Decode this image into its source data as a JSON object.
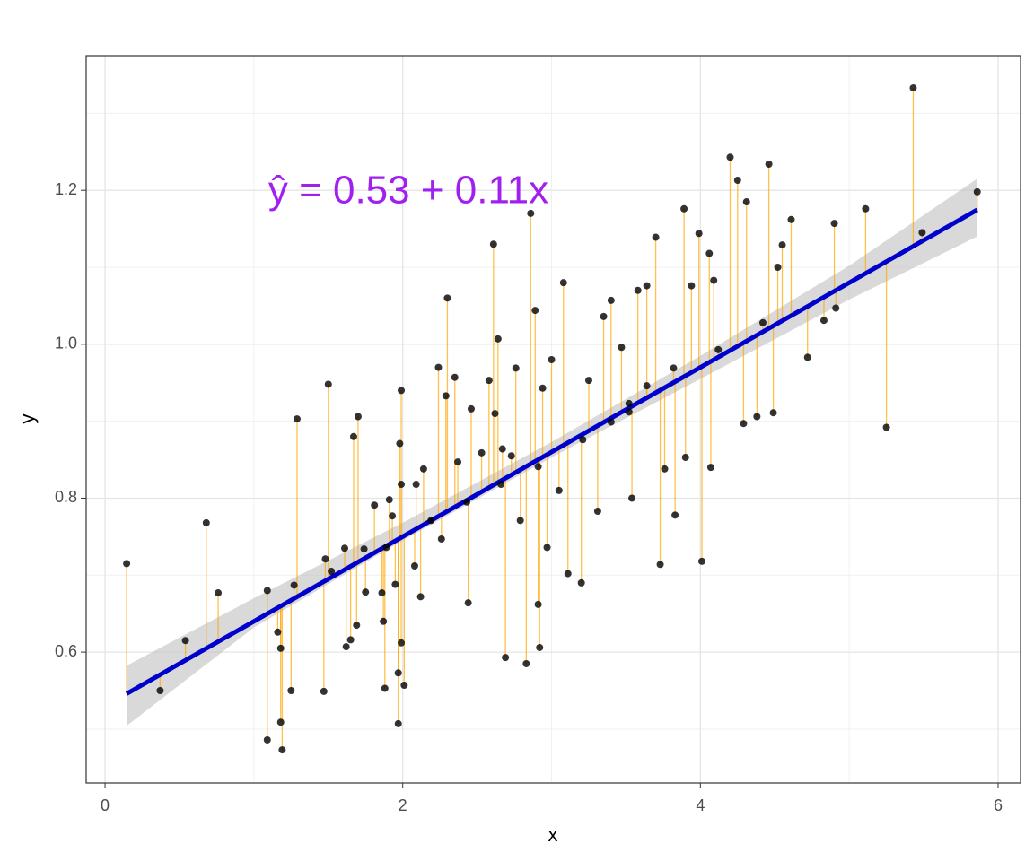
{
  "chart_data": {
    "type": "scatter",
    "annotation": "ŷ = 0.53 + 0.11x",
    "annotation_color": "#a020f0",
    "xlabel": "x",
    "ylabel": "y",
    "xlim": [
      -0.127,
      6.151
    ],
    "ylim": [
      0.43,
      1.375
    ],
    "xticks": [
      0,
      2,
      4,
      6
    ],
    "yticks": [
      0.6,
      0.8,
      {
        "value": 1,
        "label": "1.0"
      },
      1.2
    ],
    "minor_xticks": [
      1,
      3,
      5
    ],
    "minor_yticks": [
      0.5,
      0.7,
      0.9,
      1.1,
      1.3
    ],
    "grid": true,
    "color": "#000000",
    "residual_color": "#ffa500",
    "fit": {
      "intercept": 0.53,
      "slope": 0.11,
      "color": "#0000cd"
    },
    "band": {
      "color": "#bfbfbf",
      "x": [
        0.15,
        1,
        2,
        3,
        4,
        5,
        5.86
      ],
      "lower": [
        0.505,
        0.632,
        0.745,
        0.853,
        0.955,
        1.058,
        1.14
      ],
      "upper": [
        0.583,
        0.67,
        0.768,
        0.873,
        0.985,
        1.102,
        1.215
      ]
    },
    "x": [
      0.145,
      0.37,
      0.54,
      0.68,
      0.76,
      1.09,
      1.09,
      1.16,
      1.18,
      1.19,
      1.18,
      1.25,
      1.27,
      1.29,
      1.47,
      1.5,
      1.48,
      1.52,
      1.61,
      1.62,
      1.65,
      1.67,
      1.7,
      1.69,
      1.74,
      1.75,
      1.81,
      1.86,
      1.88,
      1.87,
      1.91,
      1.93,
      1.95,
      1.97,
      1.97,
      1.99,
      1.98,
      1.99,
      2.01,
      1.99,
      2.08,
      2.09,
      2.12,
      2.14,
      2.24,
      2.26,
      2.3,
      2.29,
      2.35,
      2.37,
      2.44,
      2.46,
      2.53,
      2.58,
      2.61,
      2.62,
      2.64,
      2.66,
      2.69,
      2.73,
      2.76,
      2.79,
      2.83,
      2.86,
      2.89,
      2.91,
      2.92,
      2.94,
      2.97,
      3.0,
      3.05,
      3.08,
      3.11,
      3.2,
      3.25,
      3.31,
      3.35,
      3.4,
      3.47,
      3.52,
      3.54,
      3.58,
      3.64,
      3.7,
      3.73,
      3.76,
      3.83,
      3.89,
      3.9,
      3.94,
      3.99,
      4.01,
      4.06,
      4.07,
      4.09,
      4.2,
      4.25,
      4.29,
      4.31,
      4.38,
      4.46,
      4.49,
      4.52,
      4.55,
      4.61,
      4.72,
      4.83,
      4.9,
      4.91,
      5.11,
      5.25,
      5.43,
      5.49,
      5.86,
      1.89,
      2.43,
      2.91,
      3.21,
      3.52,
      3.82,
      4.12,
      4.42,
      2.19,
      2.67,
      3.4,
      3.64
    ],
    "values": [
      0.715,
      0.55,
      0.615,
      0.768,
      0.677,
      0.68,
      0.486,
      0.626,
      0.509,
      0.473,
      0.605,
      0.55,
      0.687,
      0.903,
      0.549,
      0.948,
      0.721,
      0.705,
      0.735,
      0.607,
      0.616,
      0.88,
      0.906,
      0.635,
      0.734,
      0.678,
      0.791,
      0.677,
      0.553,
      0.64,
      0.798,
      0.777,
      0.688,
      0.573,
      0.507,
      0.94,
      0.871,
      0.612,
      0.557,
      0.818,
      0.712,
      0.818,
      0.672,
      0.838,
      0.97,
      0.747,
      1.06,
      0.933,
      0.957,
      0.847,
      0.664,
      0.916,
      0.859,
      0.953,
      1.13,
      0.91,
      1.007,
      0.818,
      0.593,
      0.855,
      0.969,
      0.771,
      0.585,
      1.17,
      1.044,
      0.662,
      0.606,
      0.943,
      0.736,
      0.98,
      0.81,
      1.08,
      0.702,
      0.69,
      0.953,
      0.783,
      1.036,
      1.057,
      0.996,
      0.912,
      0.8,
      1.07,
      1.076,
      1.139,
      0.714,
      0.838,
      0.778,
      1.176,
      0.853,
      1.076,
      1.144,
      0.718,
      1.118,
      0.84,
      1.083,
      1.243,
      1.213,
      0.897,
      1.185,
      0.906,
      1.234,
      0.911,
      1.1,
      1.129,
      1.162,
      0.983,
      1.031,
      1.157,
      1.047,
      1.176,
      0.892,
      1.333,
      1.145,
      1.198,
      0.736,
      0.795,
      0.841,
      0.876,
      0.923,
      0.969,
      0.993,
      1.028,
      0.771,
      0.864,
      0.899,
      0.946
    ]
  }
}
